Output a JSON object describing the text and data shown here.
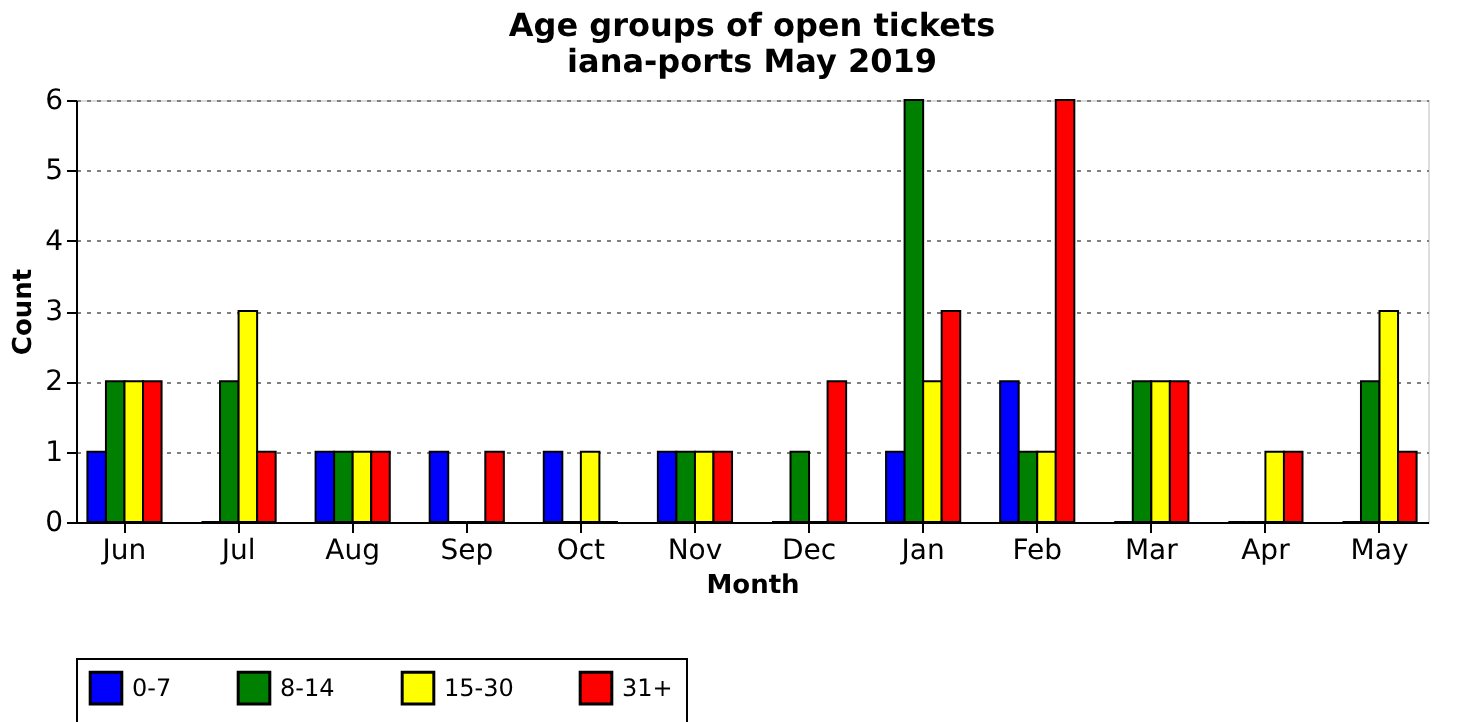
{
  "chart_data": {
    "type": "bar",
    "title": "Age groups of open tickets\niana-ports May 2019",
    "xlabel": "Month",
    "ylabel": "Count",
    "categories": [
      "Jun",
      "Jul",
      "Aug",
      "Sep",
      "Oct",
      "Nov",
      "Dec",
      "Jan",
      "Feb",
      "Mar",
      "Apr",
      "May"
    ],
    "series": [
      {
        "name": "0-7",
        "color": "#0000ff",
        "values": [
          1,
          0,
          1,
          1,
          1,
          1,
          0,
          1,
          2,
          0,
          0,
          0
        ]
      },
      {
        "name": "8-14",
        "color": "#008000",
        "values": [
          2,
          2,
          1,
          0,
          0,
          1,
          1,
          6,
          1,
          2,
          0,
          2
        ]
      },
      {
        "name": "15-30",
        "color": "#ffff00",
        "values": [
          2,
          3,
          1,
          0,
          1,
          1,
          0,
          2,
          1,
          2,
          1,
          3
        ]
      },
      {
        "name": "31+",
        "color": "#ff0000",
        "values": [
          2,
          1,
          1,
          1,
          0,
          1,
          2,
          3,
          6,
          2,
          1,
          1
        ]
      }
    ],
    "ylim": [
      0,
      6
    ],
    "yticks": [
      0,
      1,
      2,
      3,
      4,
      5,
      6
    ],
    "grid": "y",
    "legend": "bottom"
  }
}
